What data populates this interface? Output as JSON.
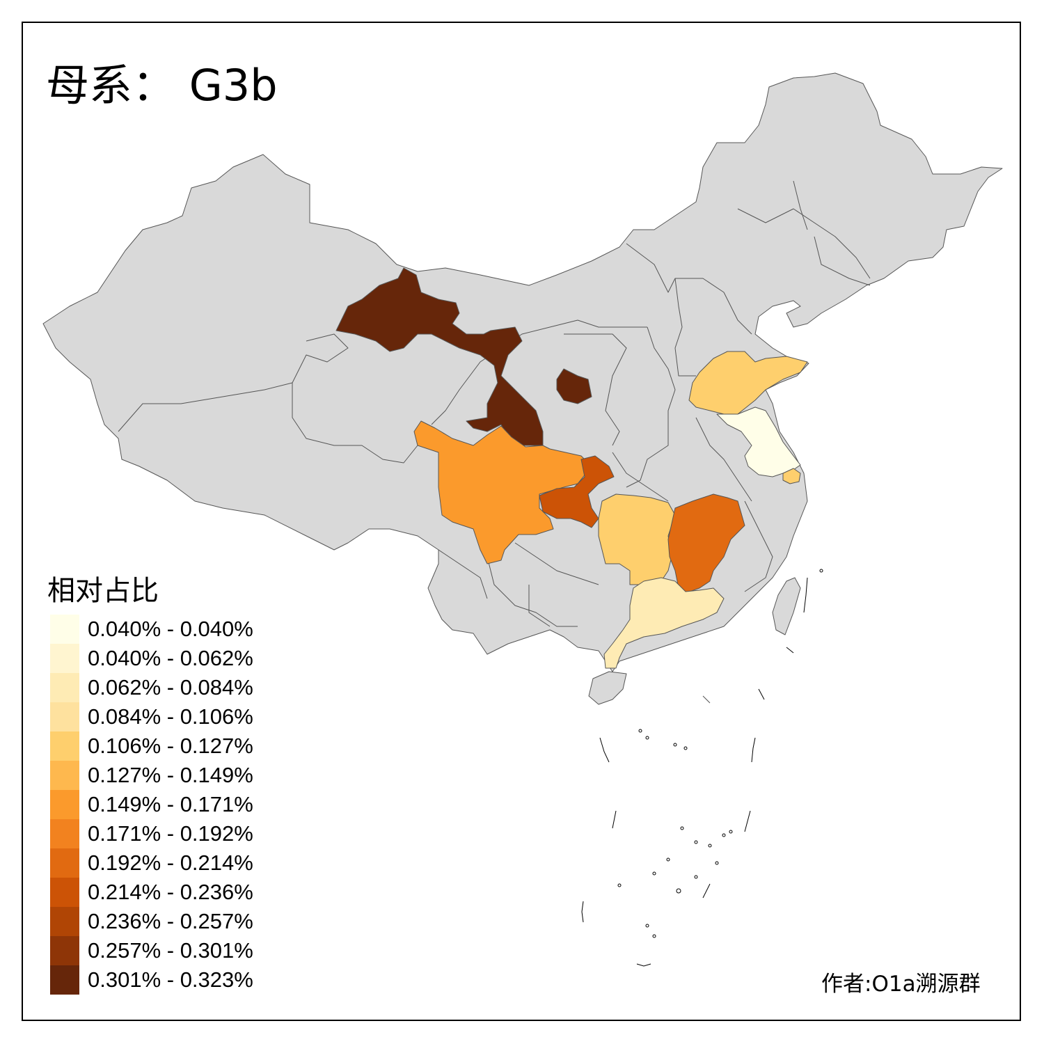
{
  "title": "母系： G3b",
  "legend": {
    "title": "相对占比",
    "classes": [
      {
        "label": "0.040% - 0.040%",
        "color": "#FFFEE8"
      },
      {
        "label": "0.040% - 0.062%",
        "color": "#FFF5D0"
      },
      {
        "label": "0.062% - 0.084%",
        "color": "#FEEBB4"
      },
      {
        "label": "0.084% - 0.106%",
        "color": "#FEE19E"
      },
      {
        "label": "0.106% - 0.127%",
        "color": "#FECF6D"
      },
      {
        "label": "0.127% - 0.149%",
        "color": "#FEB84E"
      },
      {
        "label": "0.149% - 0.171%",
        "color": "#FB9A2C"
      },
      {
        "label": "0.171% - 0.192%",
        "color": "#F2821F"
      },
      {
        "label": "0.192% - 0.214%",
        "color": "#E16A11"
      },
      {
        "label": "0.214% - 0.236%",
        "color": "#CC5306"
      },
      {
        "label": "0.236% - 0.257%",
        "color": "#B04505"
      },
      {
        "label": "0.257% - 0.301%",
        "color": "#8E3507"
      },
      {
        "label": "0.301% - 0.323%",
        "color": "#66260A"
      }
    ]
  },
  "credit": "作者:O1a溯源群",
  "colors": {
    "no_data": "#D9D9D9",
    "border": "#555555"
  },
  "regions_highlighted": [
    {
      "region": "gansu",
      "class_index": 12
    },
    {
      "region": "sichuan",
      "class_index": 6
    },
    {
      "region": "chongqing",
      "class_index": 9
    },
    {
      "region": "hunan",
      "class_index": 4
    },
    {
      "region": "jiangxi",
      "class_index": 8
    },
    {
      "region": "guangdong",
      "class_index": 2
    },
    {
      "region": "shandong",
      "class_index": 4
    },
    {
      "region": "jiangsu",
      "class_index": 0
    },
    {
      "region": "shanghai",
      "class_index": 4
    }
  ]
}
